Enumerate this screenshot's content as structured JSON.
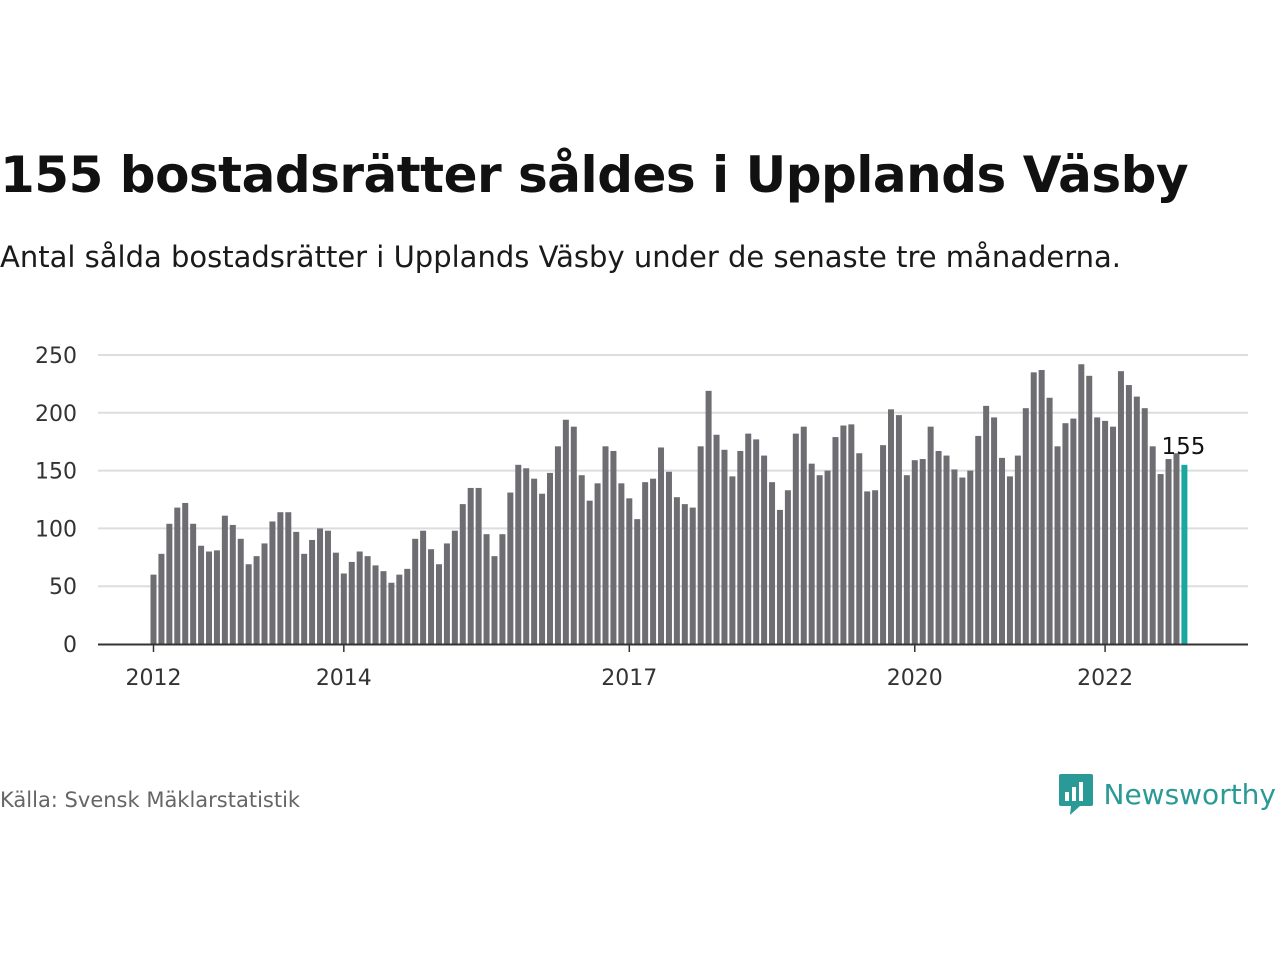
{
  "title": "155 bostadsrätter såldes i Upplands Väsby",
  "subtitle": "Antal sålda bostadsrätter i Upplands Väsby under de senaste tre månaderna.",
  "source": "Källa: Svensk Mäklarstatistik",
  "brand": "Newsworthy",
  "colors": {
    "bar": "#6d6d72",
    "highlight": "#1aa89e",
    "grid": "#dddddd",
    "axis": "#333333",
    "brand": "#2a9a96"
  },
  "chart_data": {
    "type": "bar",
    "title": "",
    "xlabel": "",
    "ylabel": "",
    "ylim": [
      0,
      250
    ],
    "yticks": [
      0,
      50,
      100,
      150,
      200,
      250
    ],
    "xticks": [
      {
        "label": "2012",
        "index": 0
      },
      {
        "label": "2014",
        "index": 24
      },
      {
        "label": "2017",
        "index": 60
      },
      {
        "label": "2020",
        "index": 96
      },
      {
        "label": "2022",
        "index": 120
      }
    ],
    "grid": true,
    "highlight": {
      "index": 130,
      "label": "155"
    },
    "values": [
      60,
      78,
      104,
      118,
      122,
      104,
      85,
      80,
      81,
      111,
      103,
      91,
      69,
      76,
      87,
      106,
      114,
      114,
      97,
      78,
      90,
      100,
      98,
      79,
      61,
      71,
      80,
      76,
      68,
      63,
      53,
      60,
      65,
      91,
      98,
      82,
      69,
      87,
      98,
      121,
      135,
      135,
      95,
      76,
      95,
      131,
      155,
      152,
      143,
      130,
      148,
      171,
      194,
      188,
      146,
      124,
      139,
      171,
      167,
      139,
      126,
      108,
      140,
      143,
      170,
      149,
      127,
      121,
      118,
      171,
      219,
      181,
      168,
      145,
      167,
      182,
      177,
      163,
      140,
      116,
      133,
      182,
      188,
      156,
      146,
      150,
      179,
      189,
      190,
      165,
      132,
      133,
      172,
      203,
      198,
      146,
      159,
      160,
      188,
      167,
      163,
      151,
      144,
      150,
      180,
      206,
      196,
      161,
      145,
      163,
      204,
      235,
      237,
      213,
      171,
      191,
      195,
      242,
      232,
      196,
      193,
      188,
      236,
      224,
      214,
      204,
      171,
      147,
      160,
      165,
      155
    ]
  }
}
